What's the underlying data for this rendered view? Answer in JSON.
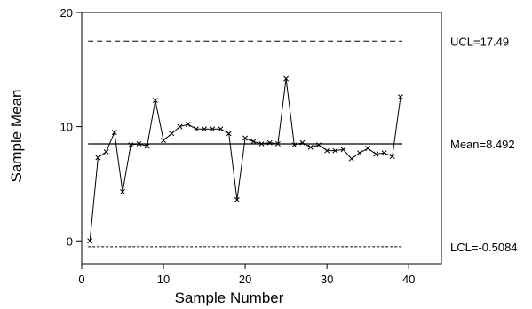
{
  "chart_data": {
    "type": "line",
    "title": "",
    "xlabel": "Sample Number",
    "ylabel": "Sample Mean",
    "xlim": [
      0,
      44
    ],
    "ylim": [
      -2,
      20
    ],
    "xticks": [
      0,
      10,
      20,
      30,
      40
    ],
    "yticks": [
      0,
      10,
      20
    ],
    "xtick_labels": [
      "0",
      "10",
      "20",
      "30",
      "40"
    ],
    "ytick_labels": [
      "0",
      "10",
      "20"
    ],
    "grid": false,
    "marker": "x",
    "x": [
      1,
      2,
      3,
      4,
      5,
      6,
      7,
      8,
      9,
      10,
      11,
      12,
      13,
      14,
      15,
      16,
      17,
      18,
      19,
      20,
      21,
      22,
      23,
      24,
      25,
      26,
      27,
      28,
      29,
      30,
      31,
      32,
      33,
      34,
      35,
      36,
      37,
      38,
      39
    ],
    "values": [
      0.0,
      7.3,
      7.8,
      9.5,
      4.3,
      8.4,
      8.5,
      8.3,
      12.3,
      8.8,
      9.4,
      10.0,
      10.2,
      9.8,
      9.8,
      9.8,
      9.8,
      9.4,
      3.6,
      9.0,
      8.7,
      8.5,
      8.6,
      8.5,
      14.2,
      8.4,
      8.6,
      8.2,
      8.4,
      7.9,
      7.9,
      8.0,
      7.2,
      7.7,
      8.1,
      7.6,
      7.7,
      7.4,
      12.6
    ],
    "reference_lines": [
      {
        "name": "UCL",
        "label": "UCL=17.49",
        "value": 17.49,
        "style": "dashed"
      },
      {
        "name": "Mean",
        "label": "Mean=8.492",
        "value": 8.492,
        "style": "solid"
      },
      {
        "name": "LCL",
        "label": "LCL=-0.5084",
        "value": -0.5084,
        "style": "dotted"
      }
    ]
  }
}
